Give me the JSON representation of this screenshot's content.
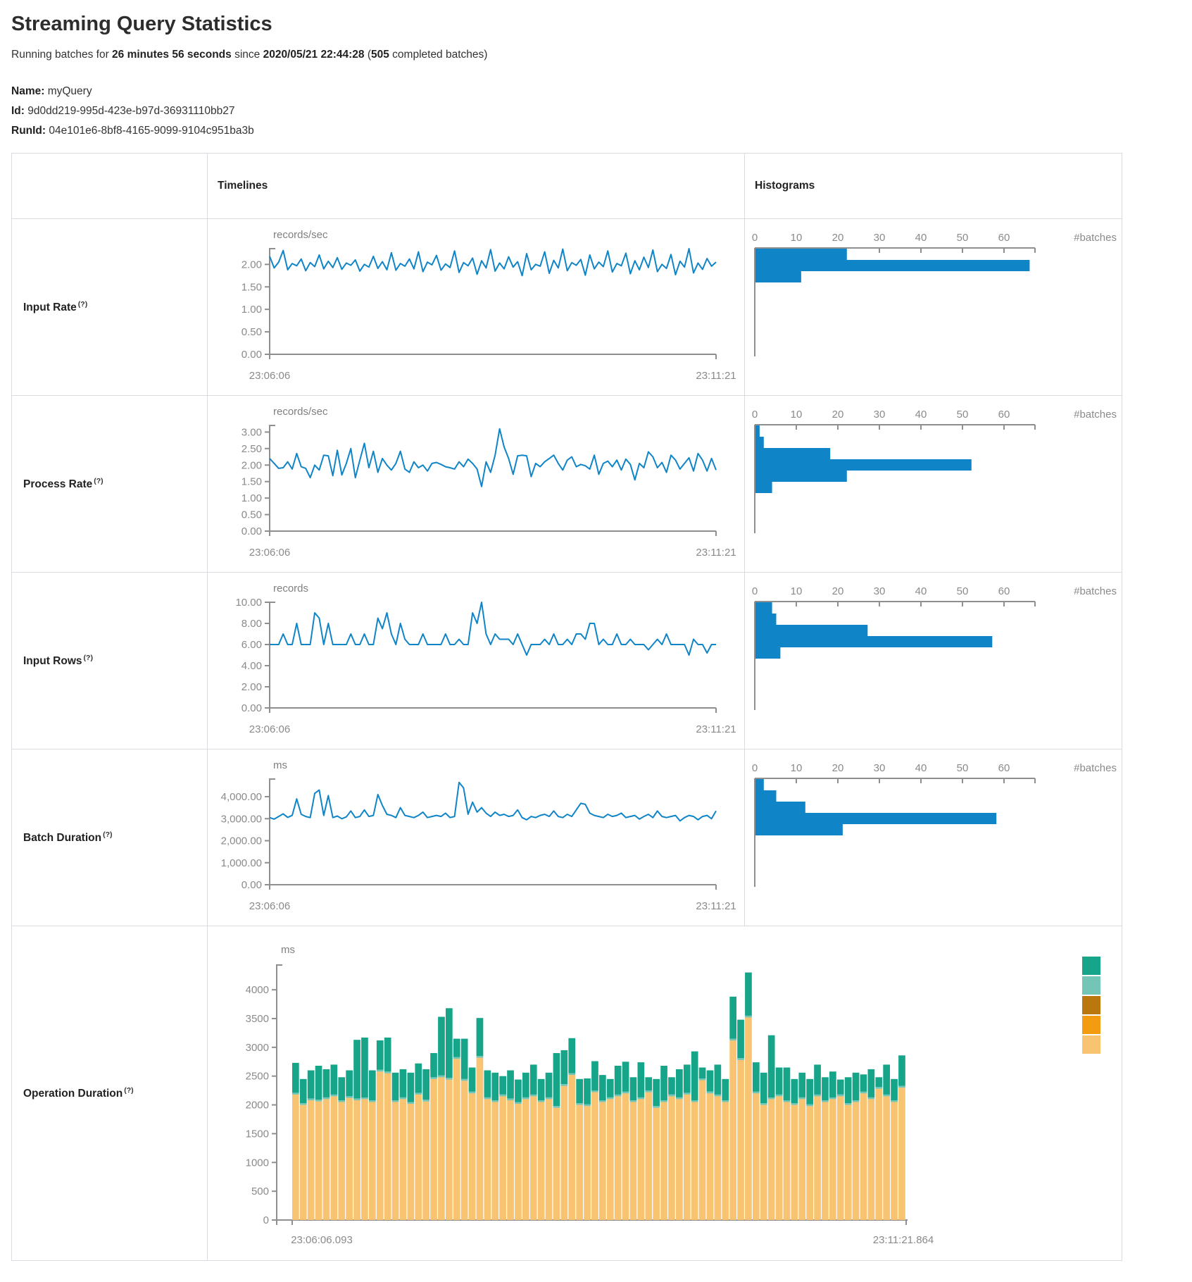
{
  "header": {
    "title": "Streaming Query Statistics",
    "subtitle": {
      "prefix": "Running batches for ",
      "duration": "26 minutes 56 seconds",
      "mid": " since ",
      "start_time": "2020/05/21 22:44:28",
      "paren": " (",
      "batch_count": "505",
      "suffix": " completed batches)"
    },
    "name_label": "Name:",
    "name_value": "myQuery",
    "id_label": "Id:",
    "id_value": "9d0dd219-995d-423e-b97d-36931110bb27",
    "runid_label": "RunId:",
    "runid_value": "04e101e6-8bf8-4165-9099-9104c951ba3b"
  },
  "table": {
    "col_timelines": "Timelines",
    "col_histograms": "Histograms",
    "rows": [
      {
        "label": "Input Rate",
        "help": "(?)"
      },
      {
        "label": "Process Rate",
        "help": "(?)"
      },
      {
        "label": "Input Rows",
        "help": "(?)"
      },
      {
        "label": "Batch Duration",
        "help": "(?)"
      },
      {
        "label": "Operation Duration",
        "help": "(?)"
      }
    ]
  },
  "colors": {
    "line_blue": "#0f85c8",
    "bar_blue": "#0f85c8",
    "axis_gray": "#8f8f8f",
    "label_gray": "#8a8a8a",
    "unit_gray": "#808080"
  },
  "chart_data": [
    {
      "type": "line",
      "name": "input-rate-timeline",
      "unit": "records/sec",
      "x_start": "23:06:06",
      "x_end": "23:11:21",
      "ymax": 2.35,
      "yticks": [
        0,
        0.5,
        1,
        1.5,
        2
      ],
      "ytick_labels": [
        "0.00",
        "0.50",
        "1.00",
        "1.50",
        "2.00"
      ],
      "values": [
        2.18,
        1.92,
        2.05,
        2.31,
        1.88,
        2.02,
        1.97,
        2.12,
        1.86,
        2.04,
        1.95,
        2.21,
        1.9,
        2.07,
        1.93,
        2.15,
        1.89,
        2.03,
        1.98,
        2.1,
        1.85,
        2.0,
        1.94,
        2.18,
        1.91,
        2.06,
        1.88,
        2.26,
        1.87,
        2.02,
        1.96,
        2.12,
        1.9,
        2.28,
        1.84,
        2.05,
        1.99,
        2.2,
        1.87,
        2.01,
        1.93,
        2.3,
        1.82,
        2.04,
        1.97,
        2.14,
        1.78,
        2.08,
        1.92,
        2.33,
        1.85,
        2.03,
        1.9,
        2.17,
        1.94,
        2.06,
        1.75,
        2.24,
        1.88,
        2.0,
        1.96,
        2.28,
        1.8,
        2.09,
        1.92,
        2.34,
        1.86,
        2.04,
        1.98,
        2.11,
        1.76,
        2.21,
        1.9,
        2.05,
        1.95,
        2.3,
        1.83,
        2.02,
        1.97,
        2.25,
        1.79,
        2.08,
        1.88,
        2.16,
        1.93,
        2.32,
        1.84,
        2.0,
        1.91,
        2.22,
        1.77,
        2.07,
        1.94,
        2.35,
        1.81,
        2.03,
        1.89,
        2.13,
        1.96,
        2.05
      ]
    },
    {
      "type": "line",
      "name": "process-rate-timeline",
      "unit": "records/sec",
      "x_start": "23:06:06",
      "x_end": "23:11:21",
      "ymax": 3.2,
      "yticks": [
        0,
        0.5,
        1,
        1.5,
        2,
        2.5,
        3
      ],
      "ytick_labels": [
        "0.00",
        "0.50",
        "1.00",
        "1.50",
        "2.00",
        "2.50",
        "3.00"
      ],
      "values": [
        2.2,
        2.05,
        1.9,
        1.92,
        2.1,
        1.88,
        2.35,
        1.95,
        1.9,
        1.62,
        2.0,
        1.85,
        2.3,
        2.28,
        1.68,
        2.45,
        1.7,
        2.05,
        2.5,
        1.62,
        2.15,
        2.66,
        1.92,
        2.42,
        1.78,
        2.2,
        2.0,
        1.85,
        2.05,
        2.42,
        1.88,
        1.78,
        2.1,
        1.92,
        2.0,
        1.82,
        2.05,
        2.08,
        2.02,
        1.95,
        1.92,
        1.88,
        2.1,
        1.95,
        2.18,
        2.05,
        1.88,
        1.35,
        2.1,
        1.78,
        2.3,
        3.1,
        2.55,
        2.2,
        1.72,
        2.28,
        2.3,
        2.28,
        1.65,
        2.05,
        1.95,
        2.1,
        2.2,
        2.3,
        2.05,
        1.85,
        2.15,
        2.25,
        1.95,
        2.02,
        1.98,
        1.88,
        2.3,
        1.72,
        2.05,
        2.12,
        1.95,
        2.15,
        1.85,
        2.18,
        2.02,
        1.55,
        2.05,
        1.92,
        2.4,
        2.25,
        1.92,
        2.08,
        1.78,
        2.3,
        2.15,
        1.88,
        2.05,
        2.22,
        1.82,
        2.35,
        2.15,
        1.82,
        2.2,
        1.85
      ]
    },
    {
      "type": "line",
      "name": "input-rows-timeline",
      "unit": "records",
      "x_start": "23:06:06",
      "x_end": "23:11:21",
      "ymax": 10.0,
      "yticks": [
        0,
        2,
        4,
        6,
        8,
        10
      ],
      "ytick_labels": [
        "0.00",
        "2.00",
        "4.00",
        "6.00",
        "8.00",
        "10.00"
      ],
      "values": [
        6,
        6,
        6,
        7,
        6,
        6,
        8,
        6,
        6,
        6,
        9,
        8.5,
        6,
        8,
        6,
        6,
        6,
        6,
        7,
        6,
        6,
        7,
        6,
        6,
        8.5,
        7.5,
        9,
        7,
        6,
        8,
        6.5,
        6,
        6,
        6,
        7,
        6,
        6,
        6,
        6,
        7,
        6,
        6,
        6.5,
        6,
        6,
        9,
        8,
        10,
        7,
        6,
        7,
        6.5,
        6.5,
        6.5,
        6,
        7,
        6,
        5,
        6,
        6,
        6,
        6.5,
        6,
        7,
        6,
        6,
        6.5,
        6,
        7,
        7,
        6.5,
        8,
        8,
        6,
        6.5,
        6,
        6,
        7,
        6,
        6,
        6.5,
        6,
        6,
        6,
        5.5,
        6,
        6.5,
        6,
        7,
        6,
        6,
        6,
        6,
        5,
        6.5,
        6,
        6,
        5.2,
        6,
        6
      ]
    },
    {
      "type": "line",
      "name": "batch-duration-timeline",
      "unit": "ms",
      "x_start": "23:06:06",
      "x_end": "23:11:21",
      "ymax": 4800,
      "yticks": [
        0,
        1000,
        2000,
        3000,
        4000
      ],
      "ytick_labels": [
        "0.00",
        "1,000.00",
        "2,000.00",
        "3,000.00",
        "4,000.00"
      ],
      "values": [
        3050,
        2980,
        3100,
        3220,
        3060,
        3150,
        3900,
        3200,
        3100,
        3050,
        4150,
        4300,
        3150,
        4050,
        3050,
        3120,
        3000,
        3080,
        3350,
        3050,
        3100,
        3400,
        3100,
        3150,
        4100,
        3600,
        3200,
        3150,
        3050,
        3500,
        3150,
        3100,
        3050,
        3150,
        3300,
        3050,
        3100,
        3150,
        3100,
        3250,
        3050,
        3100,
        4650,
        4400,
        3200,
        3750,
        3300,
        3500,
        3250,
        3100,
        3300,
        3150,
        3200,
        3100,
        3150,
        3400,
        3050,
        2950,
        3100,
        3050,
        3150,
        3200,
        3100,
        3350,
        3100,
        3050,
        3200,
        3100,
        3400,
        3700,
        3650,
        3250,
        3150,
        3100,
        3050,
        3200,
        3100,
        3150,
        3250,
        3050,
        3100,
        3150,
        2980,
        3100,
        3200,
        3050,
        3350,
        3100,
        3050,
        3100,
        3150,
        2900,
        3050,
        3150,
        3100,
        2950,
        3100,
        3150,
        3000,
        3350
      ]
    },
    {
      "type": "hbar",
      "name": "input-rate-histogram",
      "xlabel": "#batches",
      "xticks": [
        0,
        10,
        20,
        30,
        40,
        50,
        60
      ],
      "values": [
        22,
        66,
        11
      ]
    },
    {
      "type": "hbar",
      "name": "process-rate-histogram",
      "xlabel": "#batches",
      "xticks": [
        0,
        10,
        20,
        30,
        40,
        50,
        60
      ],
      "values": [
        1,
        2,
        18,
        52,
        22,
        4
      ]
    },
    {
      "type": "hbar",
      "name": "input-rows-histogram",
      "xlabel": "#batches",
      "xticks": [
        0,
        10,
        20,
        30,
        40,
        50,
        60
      ],
      "values": [
        4,
        5,
        27,
        57,
        6
      ]
    },
    {
      "type": "hbar",
      "name": "batch-duration-histogram",
      "xlabel": "#batches",
      "xticks": [
        0,
        10,
        20,
        30,
        40,
        50,
        60
      ],
      "values": [
        2,
        5,
        12,
        58,
        21
      ]
    },
    {
      "type": "stacked-bar",
      "name": "operation-duration",
      "unit": "ms",
      "x_start": "23:06:06.093",
      "x_end": "23:11:21.864",
      "ymax": 4430,
      "yticks": [
        0,
        500,
        1000,
        1500,
        2000,
        2500,
        3000,
        3500,
        4000
      ],
      "ytick_labels": [
        "0",
        "500",
        "1000",
        "1500",
        "2000",
        "2500",
        "3000",
        "3500",
        "4000"
      ],
      "legend_colors": [
        "#17A589",
        "#73C6B6",
        "#B9770E",
        "#F39C12",
        "#F8C471"
      ],
      "series": [
        {
          "name": "bottom-segment",
          "color": "#F8C471",
          "values": [
            2180,
            2000,
            2080,
            2060,
            2100,
            2150,
            2050,
            2120,
            2080,
            2100,
            2050,
            2580,
            2550,
            2050,
            2100,
            2020,
            2180,
            2060,
            2450,
            2480,
            2440,
            2800,
            2420,
            2200,
            2820,
            2100,
            2050,
            2150,
            2080,
            2020,
            2100,
            2150,
            2050,
            2100,
            1950,
            2330,
            2520,
            2000,
            1980,
            2220,
            2050,
            2100,
            2150,
            2200,
            2050,
            2100,
            2220,
            1950,
            2050,
            2150,
            2100,
            2180,
            2050,
            2430,
            2200,
            2150,
            2050,
            3120,
            2780,
            3520,
            2200,
            2000,
            2100,
            2150,
            2050,
            2000,
            2100,
            1980,
            2150,
            2050,
            2100,
            2150,
            2000,
            2050,
            2200,
            2100,
            2280,
            2150,
            2050,
            2300
          ]
        },
        {
          "name": "middle-sliver",
          "color": "#73C6B6",
          "values": [
            30,
            30,
            30,
            30,
            30,
            30,
            30,
            30,
            30,
            30,
            30,
            30,
            30,
            30,
            30,
            30,
            30,
            30,
            30,
            30,
            30,
            30,
            30,
            30,
            30,
            30,
            30,
            30,
            30,
            30,
            30,
            30,
            30,
            30,
            30,
            30,
            30,
            30,
            30,
            30,
            30,
            30,
            30,
            30,
            30,
            30,
            30,
            30,
            30,
            30,
            30,
            30,
            30,
            30,
            30,
            30,
            30,
            30,
            30,
            30,
            30,
            30,
            30,
            30,
            30,
            30,
            30,
            30,
            30,
            30,
            30,
            30,
            30,
            30,
            30,
            30,
            30,
            30,
            30,
            30
          ]
        },
        {
          "name": "top-segment",
          "color": "#17A589",
          "values": [
            520,
            420,
            490,
            590,
            490,
            520,
            400,
            450,
            1020,
            1040,
            520,
            510,
            590,
            480,
            490,
            510,
            510,
            530,
            420,
            1020,
            1210,
            320,
            700,
            420,
            660,
            470,
            480,
            320,
            490,
            390,
            430,
            520,
            370,
            430,
            920,
            590,
            610,
            420,
            450,
            510,
            440,
            320,
            500,
            520,
            400,
            610,
            230,
            470,
            600,
            300,
            490,
            490,
            850,
            190,
            370,
            520,
            370,
            730,
            670,
            750,
            510,
            530,
            1080,
            470,
            570,
            420,
            430,
            440,
            520,
            400,
            450,
            260,
            450,
            480,
            300,
            490,
            170,
            520,
            370,
            530
          ]
        }
      ]
    }
  ]
}
